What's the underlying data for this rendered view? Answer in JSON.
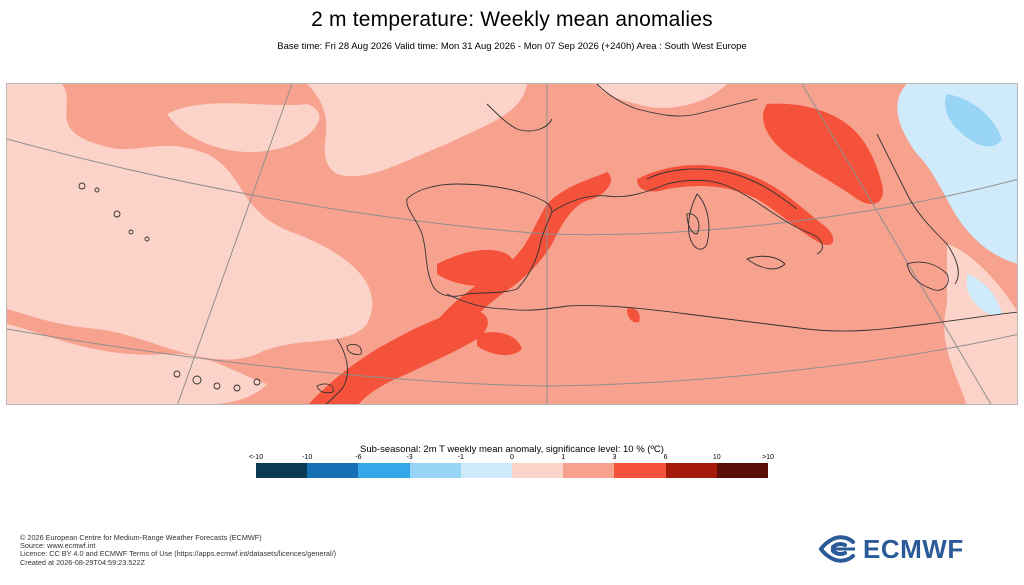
{
  "header": {
    "title": "2 m temperature: Weekly mean anomalies",
    "subtitle": "Base time: Fri 28 Aug 2026 Valid time: Mon 31 Aug 2026 - Mon 07 Sep 2026 (+240h) Area : South West Europe"
  },
  "legend": {
    "title": "Sub-seasonal: 2m T weekly mean anomaly, significance level: 10 % (ºC)",
    "tick_labels": [
      "<-10",
      "-10",
      "-6",
      "-3",
      "-1",
      "0",
      "1",
      "3",
      "6",
      "10",
      ">10"
    ],
    "colors": [
      "#0b3a56",
      "#1770b3",
      "#33a7e8",
      "#98d4f5",
      "#cfeafb",
      "#fcd3c8",
      "#f7a18f",
      "#f4523a",
      "#a51a0a",
      "#5c0d05"
    ]
  },
  "footer": {
    "lines": [
      "© 2026 European Centre for Medium-Range Weather Forecasts (ECMWF)",
      "Source: www.ecmwf.int",
      "Licence: CC BY 4.0 and ECMWF Terms of Use (https://apps.ecmwf.int/datasets/licences/general/)",
      "Created at 2026-08-29T04:59:23.522Z"
    ]
  },
  "logo": {
    "text": "ECMWF",
    "icon": "ecmwf-logo-icon"
  }
}
